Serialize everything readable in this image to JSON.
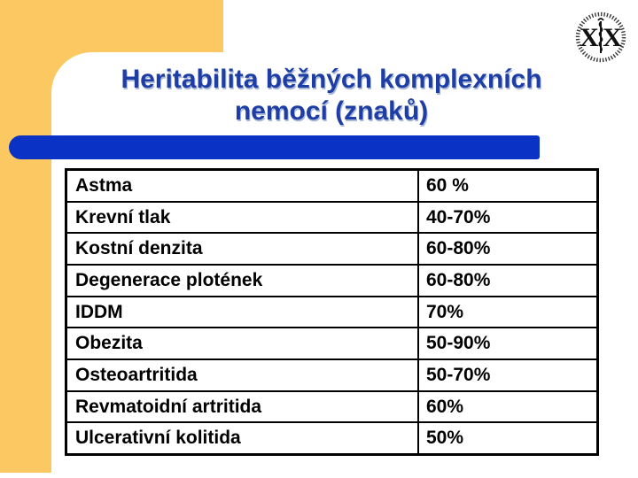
{
  "slide": {
    "title_line1": "Heritabilita běžných komplexních",
    "title_line2": "nemocí (znaků)"
  },
  "logo": {
    "icon": "university-medical-seal-icon"
  },
  "table": {
    "rows": [
      {
        "label": "Astma",
        "value": "60 %"
      },
      {
        "label": "Krevní tlak",
        "value": "40-70%"
      },
      {
        "label": "Kostní denzita",
        "value": "60-80%"
      },
      {
        "label": "Degenerace plotének",
        "value": "60-80%"
      },
      {
        "label": "IDDM",
        "value": "70%"
      },
      {
        "label": "Obezita",
        "value": "50-90%"
      },
      {
        "label": "Osteoartritida",
        "value": "50-70%"
      },
      {
        "label": "Revmatoidní artritida",
        "value": "60%"
      },
      {
        "label": "Ulcerativní kolitida",
        "value": "50%"
      }
    ]
  },
  "colors": {
    "accent_yellow": "#fbc861",
    "bar_blue": "#0a33c6",
    "title_blue": "#1e3ea5",
    "table_border": "#000000"
  }
}
